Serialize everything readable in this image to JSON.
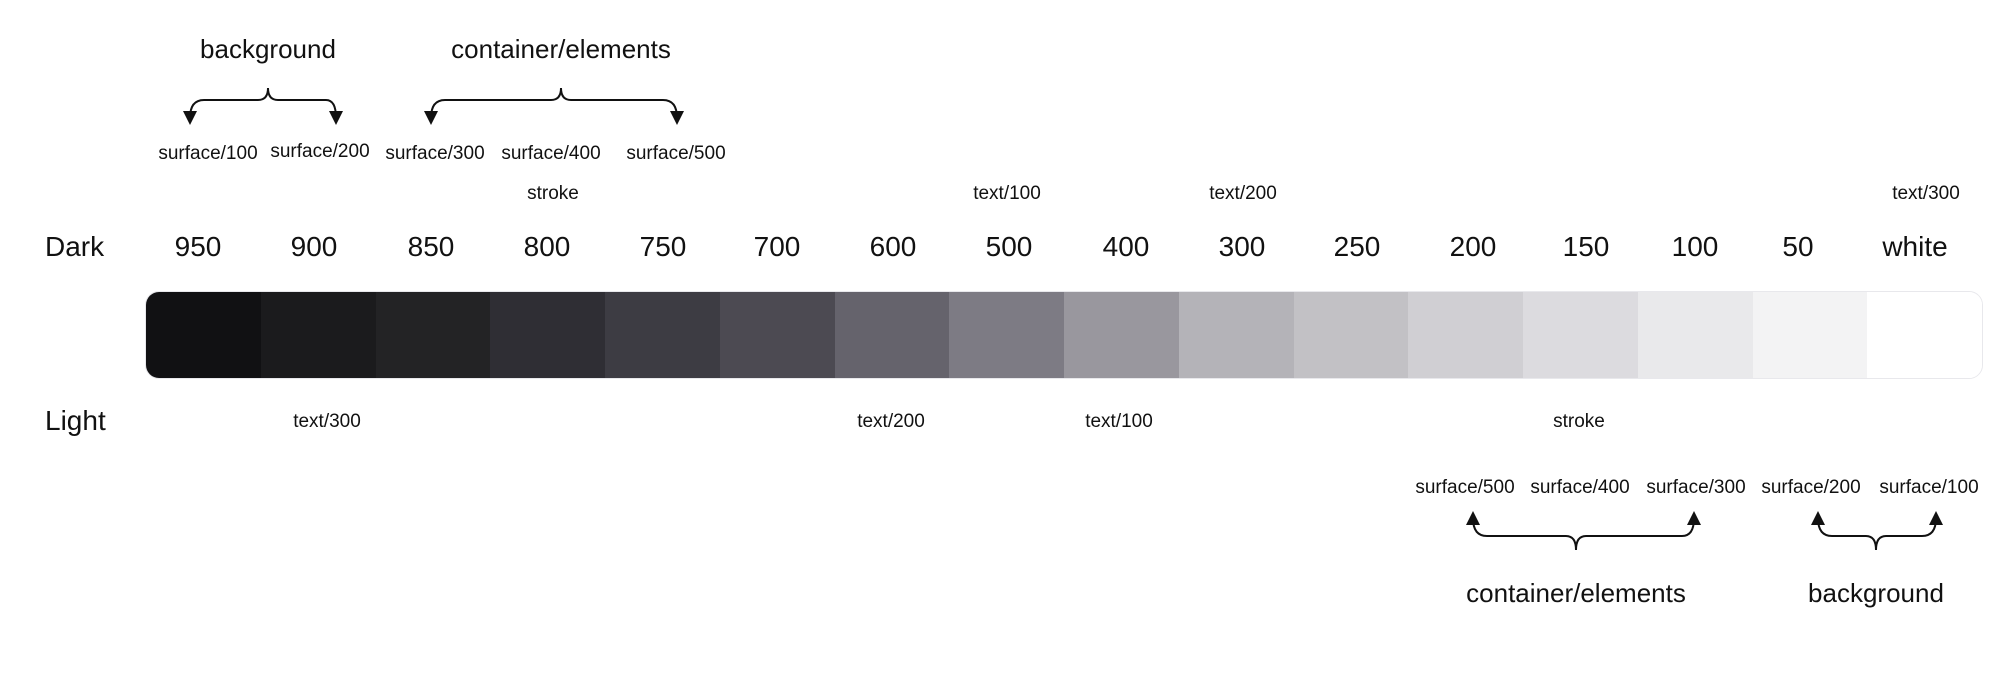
{
  "rows": {
    "dark": "Dark",
    "light": "Light"
  },
  "steps": [
    {
      "label": "950",
      "color": "#111113"
    },
    {
      "label": "900",
      "color": "#1b1b1d"
    },
    {
      "label": "850",
      "color": "#232325"
    },
    {
      "label": "800",
      "color": "#2f2e34"
    },
    {
      "label": "750",
      "color": "#3d3c43"
    },
    {
      "label": "700",
      "color": "#4c4a52"
    },
    {
      "label": "600",
      "color": "#65636c"
    },
    {
      "label": "500",
      "color": "#7d7b84"
    },
    {
      "label": "400",
      "color": "#99979e"
    },
    {
      "label": "300",
      "color": "#b4b3b8"
    },
    {
      "label": "250",
      "color": "#c2c1c5"
    },
    {
      "label": "200",
      "color": "#d0cfd3"
    },
    {
      "label": "150",
      "color": "#dcdbdf"
    },
    {
      "label": "100",
      "color": "#e9e9eb"
    },
    {
      "label": "50",
      "color": "#f3f3f4"
    },
    {
      "label": "white",
      "color": "#ffffff"
    }
  ],
  "dark": {
    "groups": {
      "background": "background",
      "container": "container/elements"
    },
    "surfaces": [
      "surface/100",
      "surface/200",
      "surface/300",
      "surface/400",
      "surface/500"
    ],
    "roles": {
      "stroke": "stroke",
      "text100": "text/100",
      "text200": "text/200",
      "text300": "text/300"
    }
  },
  "light": {
    "roles": {
      "text300": "text/300",
      "text200": "text/200",
      "text100": "text/100",
      "stroke": "stroke"
    },
    "surfaces": [
      "surface/500",
      "surface/400",
      "surface/300",
      "surface/200",
      "surface/100"
    ],
    "groups": {
      "container": "container/elements",
      "background": "background"
    }
  }
}
